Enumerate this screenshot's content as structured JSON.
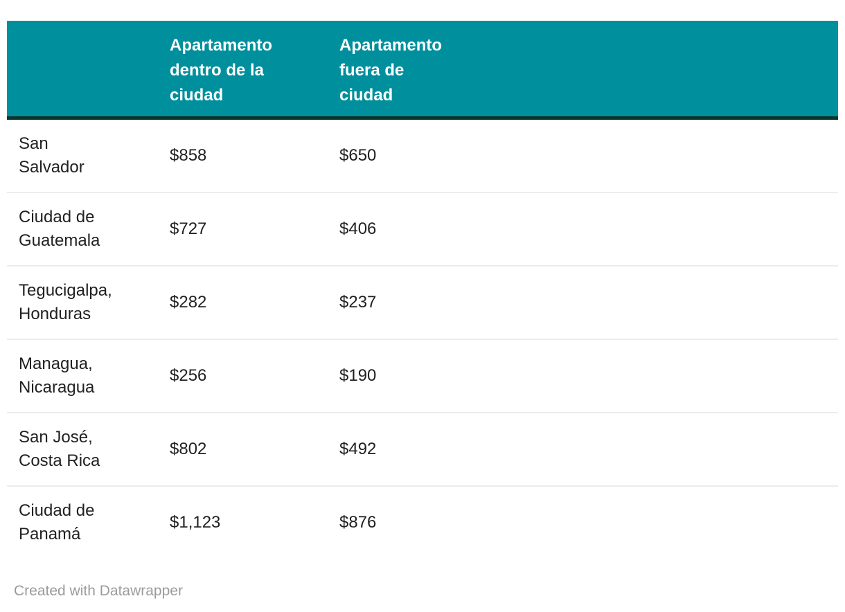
{
  "table": {
    "columns": [
      {
        "label": ""
      },
      {
        "label": "Apartamento\ndentro de la\nciudad"
      },
      {
        "label": "Apartamento\nfuera de\nciudad"
      }
    ],
    "rows": [
      {
        "city": "San\nSalvador",
        "inside": "$858",
        "outside": "$650"
      },
      {
        "city": "Ciudad de\nGuatemala",
        "inside": "$727",
        "outside": "$406"
      },
      {
        "city": "Tegucigalpa,\nHonduras",
        "inside": "$282",
        "outside": "$237"
      },
      {
        "city": "Managua,\nNicaragua",
        "inside": "$256",
        "outside": "$190"
      },
      {
        "city": "San José,\nCosta Rica",
        "inside": "$802",
        "outside": "$492"
      },
      {
        "city": "Ciudad de\nPanamá",
        "inside": "$1,123",
        "outside": "$876"
      }
    ]
  },
  "footer": {
    "attribution": "Created with Datawrapper"
  },
  "colors": {
    "header_background": "#00909d",
    "header_bottom_border": "#0c342b",
    "header_text": "#ffffff",
    "body_text": "#212121",
    "row_separator": "#ececec",
    "attribution_text": "#9b9b9b"
  },
  "chart_data": {
    "type": "table",
    "title": "",
    "columns": [
      "",
      "Apartamento dentro de la ciudad",
      "Apartamento fuera de ciudad"
    ],
    "rows": [
      [
        "San Salvador",
        858,
        650
      ],
      [
        "Ciudad de Guatemala",
        727,
        406
      ],
      [
        "Tegucigalpa, Honduras",
        282,
        237
      ],
      [
        "Managua, Nicaragua",
        256,
        190
      ],
      [
        "San José, Costa Rica",
        802,
        492
      ],
      [
        "Ciudad de Panamá",
        1123,
        876
      ]
    ],
    "value_format": "USD dollars",
    "attribution": "Created with Datawrapper"
  }
}
